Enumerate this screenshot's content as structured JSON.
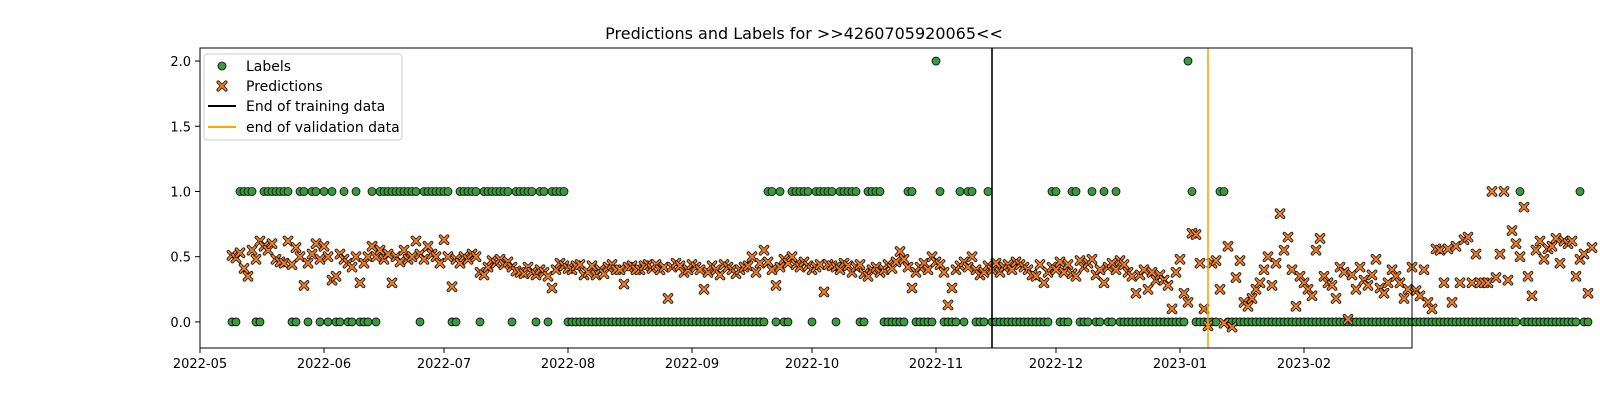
{
  "chart_data": {
    "type": "scatter",
    "title": "Predictions and Labels for >>4260705920065<<",
    "xlabel": "",
    "ylabel": "",
    "x_axis_kind": "date",
    "xlim": [
      "2022-05-01",
      "2023-02-28"
    ],
    "ylim": [
      -0.2,
      2.1
    ],
    "grid": false,
    "legend_placement": "top-left",
    "x_tick_labels": [
      "2022-05",
      "2022-06",
      "2022-07",
      "2022-08",
      "2022-09",
      "2022-10",
      "2022-11",
      "2022-12",
      "2023-01",
      "2023-02"
    ],
    "y_tick_values": [
      0.0,
      0.5,
      1.0,
      1.5,
      2.0
    ],
    "y_tick_labels": [
      "0.0",
      "0.5",
      "1.0",
      "1.5",
      "2.0"
    ],
    "legend": [
      {
        "label": "Labels",
        "kind": "circle",
        "color": "#3a9a3e"
      },
      {
        "label": "Predictions",
        "kind": "x",
        "color": "#f07f2a"
      },
      {
        "label": "End of training data",
        "kind": "line",
        "color": "#000000"
      },
      {
        "label": "end of validation data",
        "kind": "line",
        "color": "#ffa500"
      }
    ],
    "vlines": [
      {
        "name": "End of training data",
        "x": "2022-11-15",
        "color": "#000000"
      },
      {
        "name": "end of validation data",
        "x": "2023-01-08",
        "color": "#ffa500"
      }
    ],
    "series": [
      {
        "name": "Labels",
        "marker": "circle",
        "color": "#3a9a3e",
        "start_date": "2022-05-09",
        "values": [
          0,
          0,
          1,
          1,
          1,
          1,
          0,
          0,
          1,
          1,
          1,
          1,
          1,
          1,
          1,
          0,
          0,
          1,
          1,
          0,
          1,
          1,
          0,
          1,
          0,
          1,
          0,
          0,
          1,
          0,
          0,
          1,
          0,
          0,
          0,
          1,
          0,
          1,
          1,
          1,
          1,
          1,
          1,
          1,
          1,
          1,
          1,
          0,
          1,
          1,
          1,
          1,
          1,
          1,
          1,
          0,
          0,
          1,
          1,
          1,
          1,
          1,
          0,
          1,
          1,
          1,
          1,
          1,
          1,
          1,
          0,
          1,
          1,
          1,
          1,
          1,
          0,
          1,
          1,
          0,
          1,
          1,
          1,
          1,
          0,
          0,
          0,
          0,
          0,
          0,
          0,
          0,
          0,
          0,
          0,
          0,
          0,
          0,
          0,
          0,
          0,
          0,
          0,
          0,
          0,
          0,
          0,
          0,
          0,
          0,
          0,
          0,
          0,
          0,
          0,
          0,
          0,
          0,
          0,
          0,
          0,
          0,
          0,
          0,
          0,
          0,
          0,
          0,
          0,
          0,
          0,
          0,
          0,
          0,
          1,
          1,
          0,
          1,
          0,
          0,
          1,
          1,
          1,
          1,
          1,
          0,
          1,
          1,
          1,
          1,
          1,
          0,
          1,
          1,
          1,
          1,
          1,
          0,
          0,
          1,
          1,
          1,
          1,
          0,
          0,
          0,
          0,
          0,
          0,
          1,
          1,
          0,
          0,
          0,
          0,
          0,
          2,
          1,
          0,
          0,
          0,
          0,
          1,
          0,
          1,
          1,
          0,
          0,
          0,
          1,
          0,
          0,
          0,
          0,
          0,
          0,
          0,
          0,
          0,
          0,
          0,
          0,
          0,
          0,
          0,
          1,
          1,
          0,
          0,
          0,
          1,
          1,
          0,
          0,
          0,
          1,
          0,
          0,
          1,
          0,
          0,
          1,
          0,
          0,
          0,
          0,
          0,
          0,
          0,
          0,
          0,
          0,
          0,
          0,
          0,
          0,
          0,
          0,
          0,
          2,
          1,
          0,
          0,
          0,
          0,
          0,
          0,
          1,
          1,
          0,
          0,
          0,
          0,
          0,
          0,
          0,
          0,
          0,
          0,
          0,
          0,
          0,
          0,
          0,
          0,
          0,
          0,
          0,
          0,
          0,
          0,
          0,
          0,
          0,
          0,
          0,
          0,
          0,
          0,
          0,
          0,
          0,
          0,
          0,
          0,
          0,
          0,
          0,
          0,
          0,
          0,
          0,
          0,
          0,
          0,
          0,
          0,
          0,
          0,
          0,
          0,
          0,
          0,
          0,
          0,
          0,
          0,
          0,
          0,
          0,
          0,
          0,
          0,
          0,
          0,
          0,
          0,
          0,
          0,
          0,
          0,
          0,
          1,
          0,
          0,
          0,
          0,
          0,
          0,
          0,
          0,
          0,
          0,
          0,
          0,
          0,
          0,
          1,
          0,
          0
        ]
      },
      {
        "name": "Predictions",
        "marker": "x",
        "color": "#f07f2a",
        "start_date": "2022-05-09",
        "values": [
          0.51,
          0.49,
          0.53,
          0.41,
          0.35,
          0.55,
          0.48,
          0.62,
          0.58,
          0.55,
          0.6,
          0.48,
          0.46,
          0.45,
          0.62,
          0.44,
          0.57,
          0.5,
          0.28,
          0.45,
          0.52,
          0.6,
          0.48,
          0.58,
          0.5,
          0.32,
          0.35,
          0.52,
          0.48,
          0.45,
          0.42,
          0.5,
          0.3,
          0.45,
          0.5,
          0.58,
          0.5,
          0.55,
          0.48,
          0.52,
          0.3,
          0.5,
          0.46,
          0.55,
          0.48,
          0.5,
          0.62,
          0.52,
          0.48,
          0.58,
          0.52,
          0.5,
          0.45,
          0.63,
          0.5,
          0.27,
          0.48,
          0.45,
          0.5,
          0.48,
          0.52,
          0.5,
          0.38,
          0.36,
          0.42,
          0.47,
          0.45,
          0.48,
          0.44,
          0.46,
          0.42,
          0.39,
          0.38,
          0.37,
          0.42,
          0.38,
          0.36,
          0.4,
          0.38,
          0.35,
          0.26,
          0.4,
          0.45,
          0.43,
          0.41,
          0.4,
          0.43,
          0.44,
          0.36,
          0.38,
          0.43,
          0.36,
          0.4,
          0.37,
          0.42,
          0.44,
          0.4,
          0.4,
          0.29,
          0.42,
          0.43,
          0.4,
          0.4,
          0.43,
          0.44,
          0.41,
          0.44,
          0.4,
          0.42,
          0.18,
          0.42,
          0.45,
          0.43,
          0.38,
          0.4,
          0.44,
          0.42,
          0.4,
          0.25,
          0.38,
          0.43,
          0.4,
          0.36,
          0.44,
          0.42,
          0.4,
          0.37,
          0.4,
          0.42,
          0.43,
          0.5,
          0.38,
          0.45,
          0.55,
          0.46,
          0.4,
          0.28,
          0.42,
          0.48,
          0.45,
          0.5,
          0.44,
          0.42,
          0.46,
          0.43,
          0.4,
          0.42,
          0.44,
          0.23,
          0.44,
          0.43,
          0.42,
          0.4,
          0.45,
          0.43,
          0.38,
          0.42,
          0.44,
          0.37,
          0.35,
          0.4,
          0.42,
          0.38,
          0.4,
          0.44,
          0.41,
          0.46,
          0.54,
          0.48,
          0.42,
          0.26,
          0.38,
          0.42,
          0.45,
          0.4,
          0.5,
          0.46,
          0.44,
          0.38,
          0.13,
          0.26,
          0.4,
          0.43,
          0.46,
          0.42,
          0.5,
          0.4,
          0.36,
          0.38,
          0.43,
          0.4,
          0.45,
          0.38,
          0.42,
          0.44,
          0.4,
          0.46,
          0.44,
          0.42,
          0.4,
          0.36,
          0.35,
          0.44,
          0.3,
          0.38,
          0.42,
          0.4,
          0.46,
          0.38,
          0.44,
          0.37,
          0.35,
          0.47,
          0.42,
          0.45,
          0.48,
          0.36,
          0.4,
          0.3,
          0.42,
          0.45,
          0.4,
          0.47,
          0.44,
          0.38,
          0.35,
          0.22,
          0.36,
          0.4,
          0.25,
          0.38,
          0.32,
          0.36,
          0.32,
          0.28,
          0.1,
          0.38,
          0.48,
          0.22,
          0.15,
          0.68,
          0.67,
          0.45,
          0.1,
          -0.03,
          0.45,
          0.47,
          0.25,
          -0.01,
          0.58,
          -0.04,
          0.34,
          0.47,
          0.15,
          0.12,
          0.18,
          0.25,
          0.3,
          0.4,
          0.5,
          0.28,
          0.45,
          0.83,
          0.55,
          0.65,
          0.4,
          0.12,
          0.35,
          0.3,
          0.25,
          0.2,
          0.55,
          0.64,
          0.35,
          0.3,
          0.28,
          0.18,
          0.42,
          0.38,
          0.02,
          0.36,
          0.25,
          0.42,
          0.32,
          0.28,
          0.36,
          0.48,
          0.26,
          0.22,
          0.3,
          0.4,
          0.35,
          0.3,
          0.18,
          0.25,
          0.42,
          0.24,
          0.2,
          0.4,
          0.15,
          0.1,
          0.56,
          0.55,
          0.3,
          0.56,
          0.15,
          0.58,
          0.3,
          0.63,
          0.65,
          0.3,
          0.52,
          0.3,
          0.3,
          0.3,
          1.0,
          0.34,
          0.52,
          1.0,
          0.32,
          0.7,
          0.6,
          0.5,
          0.88,
          0.35,
          0.2,
          0.55,
          0.62,
          0.48,
          0.56,
          0.58,
          0.64,
          0.45,
          0.62,
          0.6,
          0.62,
          0.35,
          0.48,
          0.52,
          0.22,
          0.57
        ]
      }
    ]
  }
}
